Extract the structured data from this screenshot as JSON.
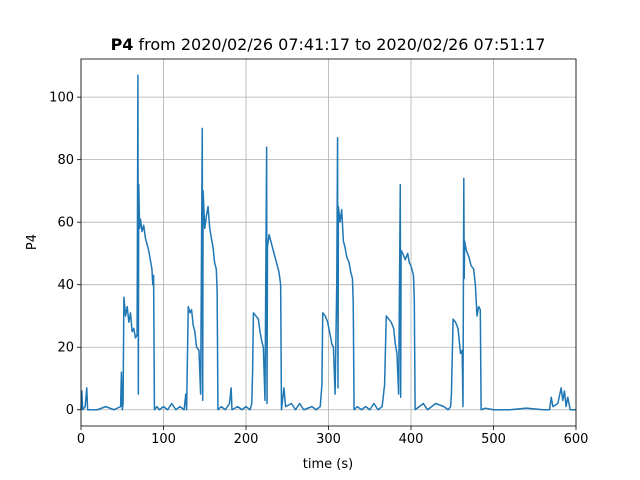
{
  "chart_data": {
    "type": "line",
    "title_name": "P4",
    "title_range": "from 2020/02/26 07:41:17 to 2020/02/26 07:51:17",
    "xlabel": "time (s)",
    "ylabel": "P4",
    "xlim": [
      0,
      600
    ],
    "ylim": [
      -5.2,
      112.2
    ],
    "xticks": [
      0,
      100,
      200,
      300,
      400,
      500,
      600
    ],
    "yticks": [
      0,
      20,
      40,
      60,
      80,
      100
    ],
    "grid": true,
    "series": [
      {
        "color": "#1f77b4",
        "x": [
          0,
          1,
          2,
          5,
          7,
          8,
          20,
          30,
          40,
          48,
          49,
          50,
          51,
          52,
          54,
          56,
          58,
          60,
          62,
          64,
          66,
          68,
          69,
          69.5,
          70,
          71,
          72,
          74,
          76,
          78,
          80,
          82,
          84,
          86,
          87,
          88,
          89,
          92,
          95,
          100,
          105,
          110,
          115,
          120,
          125,
          127,
          128,
          130,
          132,
          134,
          136,
          138,
          140,
          143,
          145,
          147,
          147.5,
          148,
          150,
          152,
          154,
          156,
          158,
          160,
          162,
          164,
          165,
          166,
          170,
          175,
          180,
          182,
          183,
          190,
          195,
          200,
          205,
          207,
          208,
          209,
          212,
          215,
          217,
          219,
          221,
          223,
          225,
          225.5,
          226,
          228,
          230,
          232,
          235,
          238,
          240,
          242,
          243,
          246,
          248,
          255,
          260,
          265,
          270,
          280,
          285,
          290,
          292,
          293,
          296,
          299,
          302,
          304,
          306,
          308,
          310,
          311,
          311.5,
          312,
          314,
          316,
          318,
          320,
          322,
          325,
          327,
          329,
          330,
          331,
          335,
          340,
          345,
          350,
          355,
          360,
          365,
          368,
          370,
          373,
          376,
          379,
          381,
          383,
          385,
          387,
          387.5,
          388,
          390,
          393,
          396,
          398,
          400,
          403,
          404,
          405,
          410,
          415,
          420,
          425,
          430,
          440,
          445,
          448,
          449,
          451,
          454,
          457,
          460,
          462,
          463,
          464,
          464.5,
          465,
          467,
          470,
          473,
          476,
          478,
          480,
          482,
          484,
          485,
          490,
          500,
          520,
          540,
          560,
          568,
          570,
          572,
          578,
          582,
          584,
          586,
          588,
          590,
          593,
          600
        ],
        "values": [
          0,
          6,
          0,
          1,
          7,
          0,
          0,
          1,
          0,
          1,
          12,
          0,
          2,
          36,
          30,
          33,
          28,
          31,
          25,
          26,
          23,
          24,
          107,
          5,
          72,
          58,
          61,
          57,
          59,
          55,
          53,
          51,
          48,
          45,
          40,
          43,
          0,
          1,
          0,
          1,
          0,
          2,
          0,
          1,
          0,
          5,
          0,
          33,
          31,
          32,
          27,
          25,
          20,
          19,
          5,
          90,
          3,
          70,
          58,
          62,
          65,
          58,
          55,
          52,
          47,
          45,
          38,
          0,
          1,
          0,
          2,
          7,
          0,
          1,
          0,
          1,
          0,
          2,
          12,
          31,
          30,
          29,
          25,
          22,
          20,
          3,
          84,
          2,
          52,
          56,
          54,
          52,
          49,
          46,
          44,
          40,
          0,
          7,
          1,
          2,
          0,
          2,
          0,
          1,
          0,
          1,
          8,
          31,
          30,
          28,
          24,
          21,
          20,
          5,
          40,
          87,
          7,
          65,
          60,
          64,
          54,
          52,
          49,
          47,
          44,
          42,
          34,
          0,
          1,
          0,
          1,
          0,
          2,
          0,
          1,
          8,
          30,
          29,
          28,
          26,
          21,
          18,
          5,
          72,
          4,
          51,
          50,
          48,
          50,
          47,
          46,
          43,
          35,
          0,
          1,
          2,
          0,
          1,
          2,
          1,
          0,
          1,
          5,
          29,
          28,
          26,
          18,
          19,
          1,
          74,
          42,
          54,
          51,
          49,
          46,
          45,
          40,
          30,
          33,
          32,
          0,
          0.5,
          0,
          0,
          0.5,
          0,
          0,
          4,
          1,
          2,
          7,
          3,
          6,
          1,
          4,
          0,
          0
        ]
      }
    ]
  }
}
